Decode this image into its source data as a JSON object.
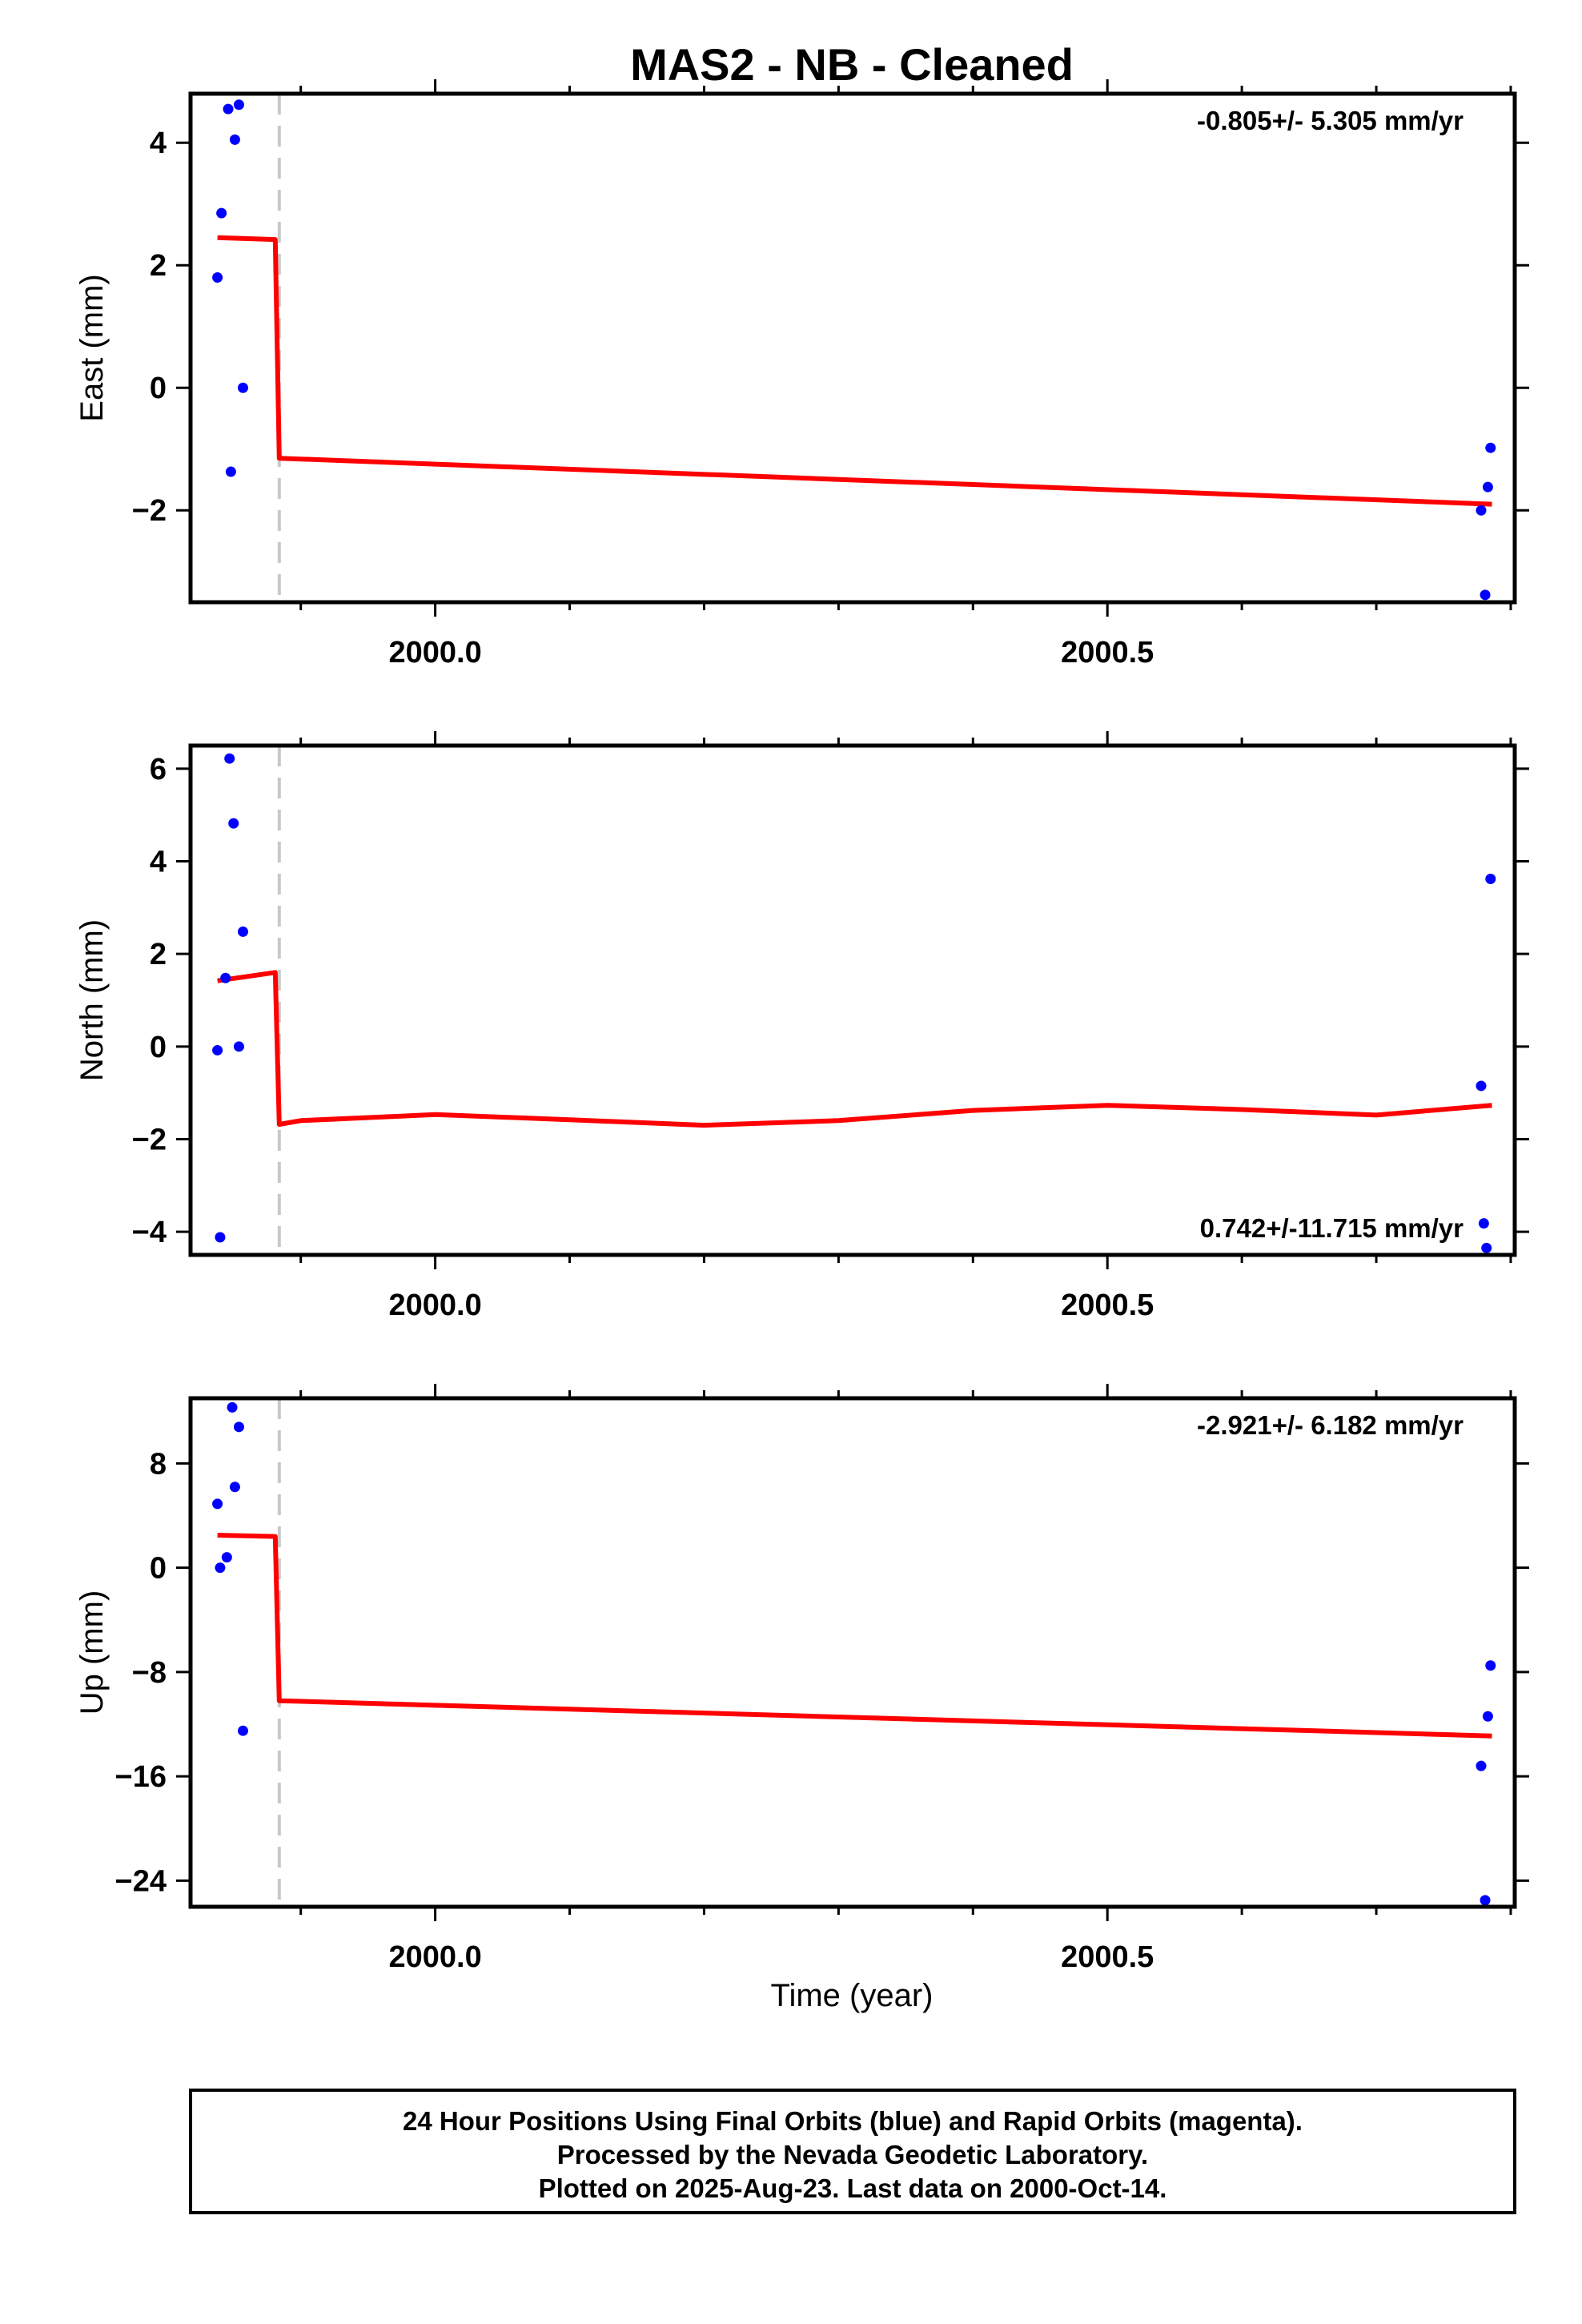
{
  "title": "MAS2  - NB - Cleaned",
  "x_axis_label": "Time (year)",
  "footer": {
    "line1": "24 Hour Positions Using Final Orbits (blue) and Rapid Orbits (magenta).",
    "line2": "Processed by the Nevada Geodetic Laboratory.",
    "line3": "Plotted on 2025-Aug-23. Last data on 2000-Oct-14."
  },
  "colors": {
    "data_points": "#0000ff",
    "model_fit": "#ff0000",
    "offset_marker": "#c8c8c8",
    "axis": "#000000"
  },
  "chart_data": [
    {
      "type": "scatter",
      "name": "east",
      "ylabel": "East (mm)",
      "rate": "-0.805+/- 5.305 mm/yr",
      "rate_position": "top-right",
      "xlim": [
        1999.818,
        2000.803
      ],
      "ylim": [
        -3.5,
        4.8
      ],
      "yticks": [
        4,
        2,
        0,
        -2
      ],
      "ytick_labels": [
        "4",
        "2",
        "0",
        "−2"
      ],
      "xticks": [
        2000.0,
        2000.5
      ],
      "xtick_labels": [
        "2000.0",
        "2000.5"
      ],
      "x_minor": [
        1999.9,
        2000.1,
        2000.2,
        2000.3,
        2000.4,
        2000.6,
        2000.7,
        2000.8
      ],
      "offset_epoch": 1999.884,
      "points": [
        [
          1999.838,
          1.8
        ],
        [
          1999.841,
          2.85
        ],
        [
          1999.846,
          4.55
        ],
        [
          1999.848,
          -1.37
        ],
        [
          1999.851,
          4.05
        ],
        [
          1999.854,
          4.62
        ],
        [
          1999.857,
          0.0
        ],
        [
          2000.778,
          -2.0
        ],
        [
          2000.781,
          -3.38
        ],
        [
          2000.783,
          -1.62
        ],
        [
          2000.785,
          -0.98
        ]
      ],
      "model": [
        [
          1999.838,
          2.45
        ],
        [
          1999.881,
          2.42
        ],
        [
          1999.884,
          -1.15
        ],
        [
          2000.786,
          -1.9
        ]
      ]
    },
    {
      "type": "scatter",
      "name": "north",
      "ylabel": "North (mm)",
      "rate": "0.742+/-11.715 mm/yr",
      "rate_position": "bottom-right",
      "xlim": [
        1999.818,
        2000.803
      ],
      "ylim": [
        -4.5,
        6.5
      ],
      "yticks": [
        6,
        4,
        2,
        0,
        -2,
        -4
      ],
      "ytick_labels": [
        "6",
        "4",
        "2",
        "0",
        "−2",
        "−4"
      ],
      "xticks": [
        2000.0,
        2000.5
      ],
      "xtick_labels": [
        "2000.0",
        "2000.5"
      ],
      "x_minor": [
        1999.9,
        2000.1,
        2000.2,
        2000.3,
        2000.4,
        2000.6,
        2000.7,
        2000.8
      ],
      "offset_epoch": 1999.884,
      "points": [
        [
          1999.838,
          -0.08
        ],
        [
          1999.84,
          -4.12
        ],
        [
          1999.844,
          1.48
        ],
        [
          1999.847,
          6.22
        ],
        [
          1999.85,
          4.82
        ],
        [
          1999.854,
          0.0
        ],
        [
          1999.857,
          2.48
        ],
        [
          2000.778,
          -0.85
        ],
        [
          2000.78,
          -3.82
        ],
        [
          2000.782,
          -4.35
        ],
        [
          2000.785,
          3.62
        ]
      ],
      "model": [
        [
          1999.838,
          1.42
        ],
        [
          1999.881,
          1.6
        ],
        [
          1999.884,
          -1.68
        ],
        [
          1999.9,
          -1.6
        ],
        [
          2000.0,
          -1.47
        ],
        [
          2000.1,
          -1.58
        ],
        [
          2000.2,
          -1.7
        ],
        [
          2000.3,
          -1.6
        ],
        [
          2000.4,
          -1.38
        ],
        [
          2000.5,
          -1.27
        ],
        [
          2000.6,
          -1.36
        ],
        [
          2000.7,
          -1.48
        ],
        [
          2000.786,
          -1.27
        ]
      ]
    },
    {
      "type": "scatter",
      "name": "up",
      "ylabel": "Up (mm)",
      "rate": "-2.921+/- 6.182 mm/yr",
      "rate_position": "top-right",
      "xlim": [
        1999.818,
        2000.803
      ],
      "ylim": [
        -26.0,
        13.0
      ],
      "yticks": [
        8,
        0,
        -8,
        -16,
        -24
      ],
      "ytick_labels": [
        "8",
        "0",
        "−8",
        "−16",
        "−24"
      ],
      "xticks": [
        2000.0,
        2000.5
      ],
      "xtick_labels": [
        "2000.0",
        "2000.5"
      ],
      "x_minor": [
        1999.9,
        2000.1,
        2000.2,
        2000.3,
        2000.4,
        2000.6,
        2000.7,
        2000.8
      ],
      "offset_epoch": 1999.884,
      "points": [
        [
          1999.838,
          4.9
        ],
        [
          1999.84,
          0.0
        ],
        [
          1999.845,
          0.8
        ],
        [
          1999.849,
          12.3
        ],
        [
          1999.851,
          6.2
        ],
        [
          1999.854,
          10.8
        ],
        [
          1999.857,
          -12.5
        ],
        [
          2000.778,
          -15.2
        ],
        [
          2000.781,
          -25.5
        ],
        [
          2000.783,
          -11.4
        ],
        [
          2000.785,
          -7.5
        ]
      ],
      "model": [
        [
          1999.838,
          2.5
        ],
        [
          1999.881,
          2.4
        ],
        [
          1999.884,
          -10.2
        ],
        [
          2000.786,
          -12.9
        ]
      ]
    }
  ]
}
